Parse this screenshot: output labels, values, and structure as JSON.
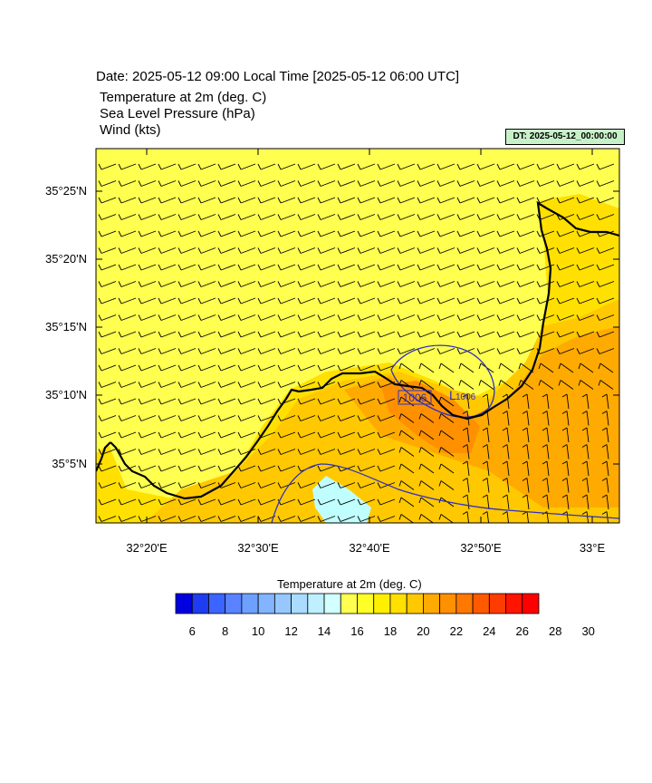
{
  "header": {
    "title": "Date: 2025-05-12  09:00 Local Time [2025-05-12  06:00 UTC]",
    "fields": [
      "Temperature at 2m   (deg. C)",
      "Sea Level Pressure   (hPa)",
      "Wind   (kts)"
    ],
    "dt_badge": "DT: 2025-05-12_00:00:00"
  },
  "map": {
    "lat_labels": [
      "35°25'N",
      "35°20'N",
      "35°15'N",
      "35°10'N",
      "35°5'N"
    ],
    "lon_labels": [
      "32°20'E",
      "32°30'E",
      "32°40'E",
      "32°50'E",
      "33°E"
    ],
    "pressure_labels": [
      "1006",
      "1006"
    ],
    "low_marker": "L",
    "colors": {
      "sea_temp": "#ffff50",
      "land_warm": "#ffe000",
      "land_warmer": "#ffc800",
      "land_hot": "#ffaa00",
      "land_hottest": "#ff9000",
      "cool_pocket": "#c0ffff",
      "coastline": "#000000",
      "isobar": "#3030c0"
    }
  },
  "colorbar": {
    "title": "Temperature at 2m  (deg. C)",
    "labels": [
      "6",
      "8",
      "10",
      "12",
      "14",
      "16",
      "18",
      "20",
      "22",
      "24",
      "26",
      "28",
      "30"
    ],
    "colors": [
      "#0000e0",
      "#1e3cf0",
      "#3c64ff",
      "#5a82ff",
      "#6ea0ff",
      "#82b4ff",
      "#96c8ff",
      "#aadcff",
      "#bef0ff",
      "#d2ffff",
      "#ffff50",
      "#ffff28",
      "#fff000",
      "#ffe000",
      "#ffc800",
      "#ffaa00",
      "#ff9000",
      "#ff7800",
      "#ff5a00",
      "#ff3c00",
      "#ff1400",
      "#ff0000"
    ]
  }
}
